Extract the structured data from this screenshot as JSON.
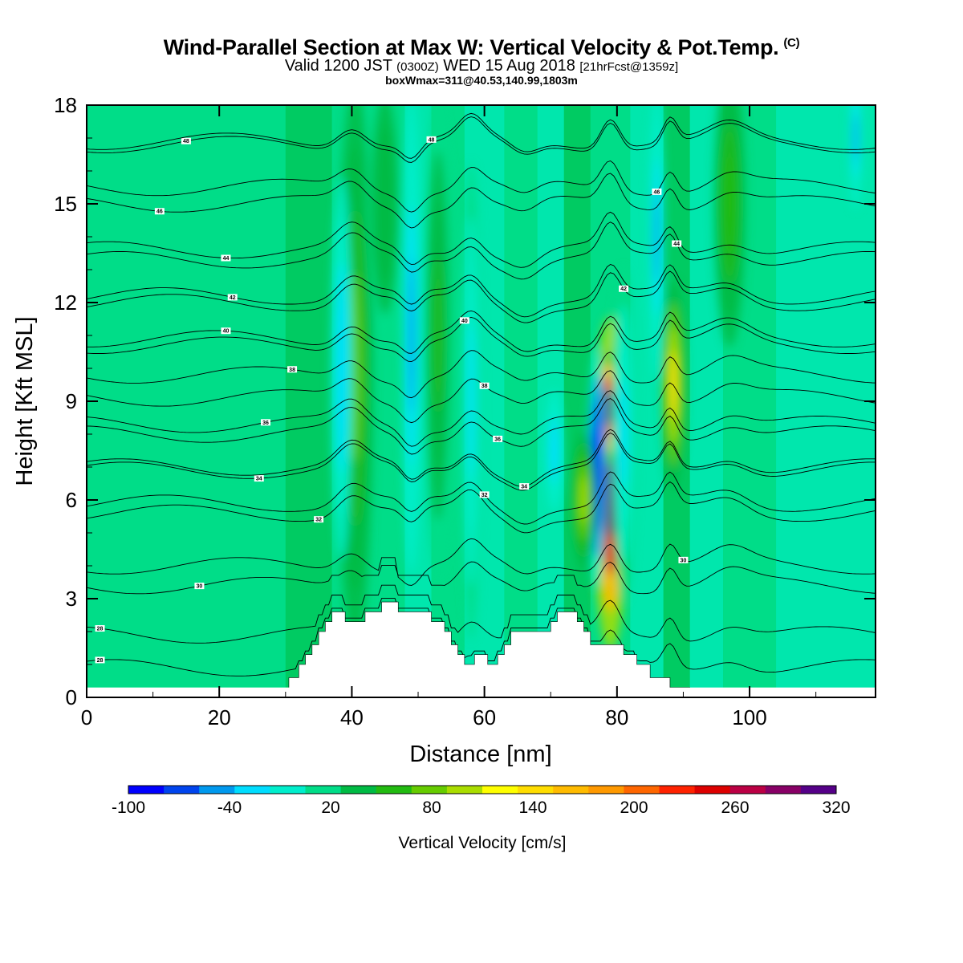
{
  "title": {
    "main": "Wind-Parallel Section at Max W: Vertical Velocity & Pot.Temp.",
    "copyright": "(C)",
    "valid_prefix": "Valid 1200 JST",
    "valid_utc": "(0300Z)",
    "valid_date": "WED 15 Aug 2018",
    "forecast": "[21hrFcst@1359z]",
    "box": "boxWmax=311@40.53,140.99,1803m"
  },
  "colors": {
    "palette": [
      "#0000ff",
      "#0044ee",
      "#0099ee",
      "#00ddff",
      "#00eecc",
      "#00dd88",
      "#00bb44",
      "#22bb11",
      "#66cc00",
      "#aadd00",
      "#ffff00",
      "#ffdd00",
      "#ffbb00",
      "#ff9900",
      "#ff6600",
      "#ff2200",
      "#dd0000",
      "#bb0044",
      "#880066",
      "#550088"
    ]
  },
  "chart_data": {
    "type": "heatmap",
    "xlabel": "Distance [nm]",
    "ylabel": "Height [Kft MSL]",
    "xlim": [
      0,
      119
    ],
    "ylim": [
      0,
      18
    ],
    "x_ticks": [
      "0",
      "20",
      "40",
      "60",
      "80",
      "100"
    ],
    "y_ticks": [
      "0",
      "3",
      "6",
      "9",
      "12",
      "15",
      "18"
    ],
    "colorbar": {
      "title": "Vertical Velocity [cm/s]",
      "levels": [
        -100,
        -80,
        -60,
        -40,
        -20,
        0,
        20,
        40,
        60,
        80,
        100,
        120,
        140,
        160,
        180,
        200,
        220,
        240,
        260,
        280,
        300,
        320
      ],
      "tick_labels": [
        "-100",
        "-40",
        "20",
        "80",
        "140",
        "200",
        "260",
        "320"
      ],
      "tick_values": [
        -100,
        -40,
        20,
        80,
        140,
        200,
        260,
        320
      ]
    },
    "background_level_cms": 10,
    "velocity_features": [
      {
        "x": 79,
        "y": 6.5,
        "w": 1.5,
        "h": 3.5,
        "value": 300
      },
      {
        "x": 78.5,
        "y": 8.8,
        "w": 1.3,
        "h": 1.2,
        "value": 280
      },
      {
        "x": 88.5,
        "y": 9.5,
        "w": 1.0,
        "h": 2.2,
        "value": 120
      },
      {
        "x": 77,
        "y": 7,
        "w": 0.8,
        "h": 2.5,
        "value": -100
      },
      {
        "x": 75,
        "y": 6,
        "w": 1.0,
        "h": 1.5,
        "value": 80
      },
      {
        "x": 81,
        "y": 8,
        "w": 1.0,
        "h": 3.5,
        "value": -30
      },
      {
        "x": 40.5,
        "y": 10,
        "w": 1.5,
        "h": 6,
        "value": 60
      },
      {
        "x": 49,
        "y": 11,
        "w": 0.8,
        "h": 5,
        "value": -50
      },
      {
        "x": 38.5,
        "y": 10,
        "w": 0.9,
        "h": 4,
        "value": -40
      },
      {
        "x": 53,
        "y": 11,
        "w": 1.2,
        "h": 5,
        "value": 45
      },
      {
        "x": 58,
        "y": 9,
        "w": 0.8,
        "h": 5,
        "value": -30
      },
      {
        "x": 86,
        "y": 14,
        "w": 0.6,
        "h": 3,
        "value": -50
      },
      {
        "x": 97,
        "y": 15,
        "w": 1.3,
        "h": 3,
        "value": 50
      },
      {
        "x": 116,
        "y": 17,
        "w": 0.5,
        "h": 1.5,
        "value": -50
      },
      {
        "x": 70.5,
        "y": 7.5,
        "w": 0.7,
        "h": 1.3,
        "value": -40
      },
      {
        "x": 45,
        "y": 15,
        "w": 1.5,
        "h": 3,
        "value": 30
      }
    ],
    "terrain_kft": [
      [
        30,
        0.0
      ],
      [
        30.5,
        0.6
      ],
      [
        32,
        1.0
      ],
      [
        33,
        1.3
      ],
      [
        34,
        1.6
      ],
      [
        35,
        2.0
      ],
      [
        36,
        2.3
      ],
      [
        37,
        2.6
      ],
      [
        38,
        2.6
      ],
      [
        39,
        2.3
      ],
      [
        41,
        2.3
      ],
      [
        42,
        2.6
      ],
      [
        44,
        2.6
      ],
      [
        44.5,
        2.9
      ],
      [
        46,
        2.9
      ],
      [
        47,
        2.6
      ],
      [
        51,
        2.6
      ],
      [
        52,
        2.3
      ],
      [
        53,
        2.3
      ],
      [
        54,
        2.0
      ],
      [
        55,
        1.6
      ],
      [
        56,
        1.3
      ],
      [
        57,
        1.0
      ],
      [
        58,
        1.0
      ],
      [
        58.5,
        1.3
      ],
      [
        60,
        1.3
      ],
      [
        60.5,
        1.0
      ],
      [
        61,
        1.0
      ],
      [
        62,
        1.3
      ],
      [
        63,
        1.6
      ],
      [
        64,
        2.0
      ],
      [
        69,
        2.0
      ],
      [
        70,
        2.3
      ],
      [
        71,
        2.6
      ],
      [
        73,
        2.6
      ],
      [
        74,
        2.3
      ],
      [
        75,
        2.0
      ],
      [
        76,
        1.6
      ],
      [
        80,
        1.6
      ],
      [
        81,
        1.3
      ],
      [
        82,
        1.3
      ],
      [
        83,
        1.0
      ],
      [
        84,
        1.0
      ],
      [
        85,
        0.6
      ],
      [
        87,
        0.6
      ],
      [
        88,
        0.3
      ],
      [
        90,
        0.3
      ],
      [
        91,
        0.0
      ]
    ],
    "surface_band_kft": 0.3,
    "isentropes": [
      {
        "label": "28",
        "base": 1.9,
        "label_x": 2
      },
      {
        "label": "28",
        "base": 0.9,
        "label_x": 2
      },
      {
        "label": "30",
        "base": 3.4,
        "label_x": 17
      },
      {
        "label": "30",
        "base": 4.0,
        "label_x": 90
      },
      {
        "label": "32",
        "base": 5.6,
        "label_x": 35
      },
      {
        "label": "32",
        "base": 5.9,
        "label_x": 60
      },
      {
        "label": "34",
        "base": 6.9,
        "label_x": 26
      },
      {
        "label": "34",
        "base": 7.0,
        "label_x": 66
      },
      {
        "label": "36",
        "base": 8.3,
        "label_x": 27
      },
      {
        "label": "36",
        "base": 8.0,
        "label_x": 62
      },
      {
        "label": "38",
        "base": 9.8,
        "label_x": 31
      },
      {
        "label": "38",
        "base": 9.1,
        "label_x": 60
      },
      {
        "label": "40",
        "base": 10.9,
        "label_x": 21
      },
      {
        "label": "40",
        "base": 10.7,
        "label_x": 57
      },
      {
        "label": "42",
        "base": 12.2,
        "label_x": 22
      },
      {
        "label": "42",
        "base": 12.0,
        "label_x": 81
      },
      {
        "label": "44",
        "base": 13.6,
        "label_x": 21
      },
      {
        "label": "44",
        "base": 13.3,
        "label_x": 89
      },
      {
        "label": "46",
        "base": 15.0,
        "label_x": 11
      },
      {
        "label": "46",
        "base": 15.5,
        "label_x": 86
      },
      {
        "label": "48",
        "base": 16.8,
        "label_x": 15
      },
      {
        "label": "48",
        "base": 16.9,
        "label_x": 52
      }
    ]
  }
}
